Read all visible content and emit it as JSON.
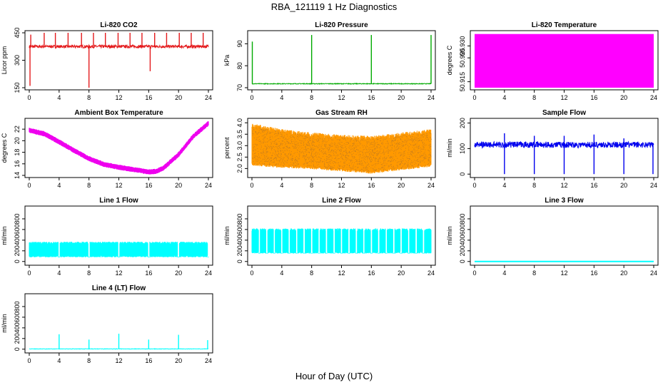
{
  "figure": {
    "title": "RBA_121119  1 Hz Diagnostics",
    "xlabel": "Hour of Day (UTC)"
  },
  "chart_data": [
    {
      "type": "line",
      "title": "Li-820 CO2",
      "ylabel": "Licor ppm",
      "color": "#e41a1c",
      "xlabel": "",
      "xlim": [
        0,
        24
      ],
      "ylim": [
        150,
        450
      ],
      "yticks": [
        "150",
        "300",
        "450"
      ],
      "xticks": [
        "0",
        "4",
        "8",
        "12",
        "16",
        "20",
        "24"
      ],
      "baseline": 375,
      "noise": 8,
      "spikes_up": [
        [
          0.2,
          440
        ],
        [
          2.0,
          450
        ],
        [
          3.5,
          450
        ],
        [
          5.2,
          450
        ],
        [
          7.0,
          450
        ],
        [
          8.6,
          450
        ],
        [
          10.2,
          450
        ],
        [
          11.9,
          450
        ],
        [
          13.5,
          450
        ],
        [
          15.1,
          450
        ],
        [
          16.8,
          450
        ],
        [
          18.4,
          450
        ],
        [
          20.1,
          450
        ],
        [
          21.7,
          450
        ],
        [
          23.3,
          450
        ]
      ],
      "spikes_down": [
        [
          0.1,
          160
        ],
        [
          8.0,
          150
        ],
        [
          16.2,
          240
        ]
      ]
    },
    {
      "type": "line",
      "title": "Li-820 Pressure",
      "ylabel": "kPa",
      "color": "#00aa00",
      "xlabel": "",
      "xlim": [
        0,
        24
      ],
      "ylim": [
        70,
        95
      ],
      "yticks": [
        "70",
        "80",
        "90"
      ],
      "xticks": [
        "0",
        "4",
        "8",
        "12",
        "16",
        "20",
        "24"
      ],
      "baseline": 71.8,
      "noise": 0.15,
      "spikes_up": [
        [
          0.05,
          91
        ],
        [
          8.0,
          94
        ],
        [
          16.0,
          94
        ],
        [
          24.0,
          94
        ]
      ]
    },
    {
      "type": "area",
      "title": "Li-820 Temperature",
      "ylabel": "degrees C",
      "color": "#ff00ff",
      "xlabel": "",
      "xlim": [
        0,
        24
      ],
      "ylim": [
        50.9125,
        50.9355
      ],
      "yticks": [
        "50.915",
        "50.925",
        "50.930"
      ],
      "xticks": [
        "0",
        "4",
        "8",
        "12",
        "16",
        "20",
        "24"
      ],
      "band": [
        50.9125,
        50.935
      ]
    },
    {
      "type": "line",
      "title": "Ambient Box Temperature",
      "ylabel": "degrees C",
      "color": "#ee00ee",
      "xlabel": "",
      "xlim": [
        0,
        24
      ],
      "ylim": [
        14,
        23.5
      ],
      "yticks": [
        "14",
        "16",
        "18",
        "20",
        "22"
      ],
      "xticks": [
        "0",
        "4",
        "8",
        "12",
        "16",
        "20",
        "24"
      ],
      "x": [
        0,
        2,
        4,
        6,
        8,
        10,
        12,
        14,
        16,
        17,
        18,
        20,
        22,
        24
      ],
      "y": [
        21.8,
        21.2,
        19.8,
        18.3,
        16.9,
        15.9,
        15.4,
        15.0,
        14.6,
        14.7,
        15.3,
        17.6,
        20.8,
        23.0
      ],
      "band_width": 0.9
    },
    {
      "type": "line",
      "title": "Gas Stream RH",
      "ylabel": "percent",
      "color": "#ff9900",
      "xlabel": "",
      "xlim": [
        0,
        24
      ],
      "ylim": [
        1.7,
        4.1
      ],
      "yticks": [
        "2.0",
        "2.5",
        "3.0",
        "3.5",
        "4.0"
      ],
      "xticks": [
        "0",
        "4",
        "8",
        "12",
        "16",
        "20",
        "24"
      ],
      "x": [
        0,
        4,
        8,
        12,
        16,
        20,
        24
      ],
      "y_low": [
        2.2,
        2.1,
        2.05,
        1.95,
        1.85,
        2.0,
        2.15
      ],
      "y_high": [
        3.85,
        3.6,
        3.45,
        3.35,
        3.3,
        3.45,
        3.6
      ]
    },
    {
      "type": "line",
      "title": "Sample Flow",
      "ylabel": "ml/min",
      "color": "#0000ee",
      "xlabel": "",
      "xlim": [
        0,
        24
      ],
      "ylim": [
        -5,
        210
      ],
      "yticks": [
        "0",
        "100",
        "200"
      ],
      "xticks": [
        "0",
        "4",
        "8",
        "12",
        "16",
        "20",
        "24"
      ],
      "baseline": 115,
      "noise": 12,
      "spikes_up": [
        [
          4.0,
          160
        ],
        [
          8.0,
          150
        ],
        [
          12.0,
          150
        ],
        [
          16.0,
          155
        ],
        [
          20.0,
          140
        ]
      ],
      "spikes_down": [
        [
          4.0,
          0
        ],
        [
          8.0,
          0
        ],
        [
          12.0,
          0
        ],
        [
          16.0,
          0
        ],
        [
          20.0,
          0
        ],
        [
          23.9,
          0
        ]
      ]
    },
    {
      "type": "line",
      "title": "Line 1 Flow",
      "ylabel": "ml/min",
      "color": "#00ffff",
      "xlabel": "",
      "xlim": [
        0,
        24
      ],
      "ylim": [
        -30,
        1000
      ],
      "yticks": [
        "0",
        "200",
        "400",
        "600",
        "800"
      ],
      "xticks": [
        "0",
        "4",
        "8",
        "12",
        "16",
        "20",
        "24"
      ],
      "band": [
        80,
        370
      ],
      "gaps": [
        4.0,
        8.0,
        12.0,
        16.0,
        20.0,
        24.0
      ]
    },
    {
      "type": "line",
      "title": "Line 2 Flow",
      "ylabel": "ml/min",
      "color": "#00ffff",
      "xlabel": "",
      "xlim": [
        0,
        24
      ],
      "ylim": [
        -30,
        1000
      ],
      "yticks": [
        "0",
        "200",
        "400",
        "600",
        "800"
      ],
      "xticks": [
        "0",
        "4",
        "8",
        "12",
        "16",
        "20",
        "24"
      ],
      "band": [
        150,
        620
      ],
      "gaps": [
        1.0,
        2.0,
        3.0,
        4.0,
        5.0,
        6.0,
        7.0,
        8.0,
        9.0,
        10.0,
        11.0,
        12.0,
        13.0,
        14.0,
        15.0,
        16.0,
        17.0,
        18.0,
        19.0,
        20.0,
        21.0,
        22.0,
        23.0
      ]
    },
    {
      "type": "line",
      "title": "Line 3 Flow",
      "ylabel": "ml/min",
      "color": "#00ffff",
      "xlabel": "",
      "xlim": [
        0,
        24
      ],
      "ylim": [
        -30,
        1000
      ],
      "yticks": [
        "0",
        "200",
        "400",
        "600",
        "800"
      ],
      "xticks": [
        "0",
        "4",
        "8",
        "12",
        "16",
        "20",
        "24"
      ],
      "x": [
        0,
        24
      ],
      "y": [
        0,
        0
      ]
    },
    {
      "type": "line",
      "title": "Line 4 (LT) Flow",
      "ylabel": "ml/min",
      "color": "#00ffff",
      "xlabel": "",
      "xlim": [
        0,
        24
      ],
      "ylim": [
        -30,
        1000
      ],
      "yticks": [
        "0",
        "200",
        "400",
        "600",
        "800"
      ],
      "xticks": [
        "0",
        "4",
        "8",
        "12",
        "16",
        "20",
        "24"
      ],
      "baseline": 5,
      "noise": 4,
      "spikes_up": [
        [
          4.0,
          280
        ],
        [
          8.0,
          180
        ],
        [
          12.0,
          290
        ],
        [
          16.0,
          180
        ],
        [
          20.0,
          270
        ],
        [
          23.9,
          170
        ]
      ]
    }
  ]
}
